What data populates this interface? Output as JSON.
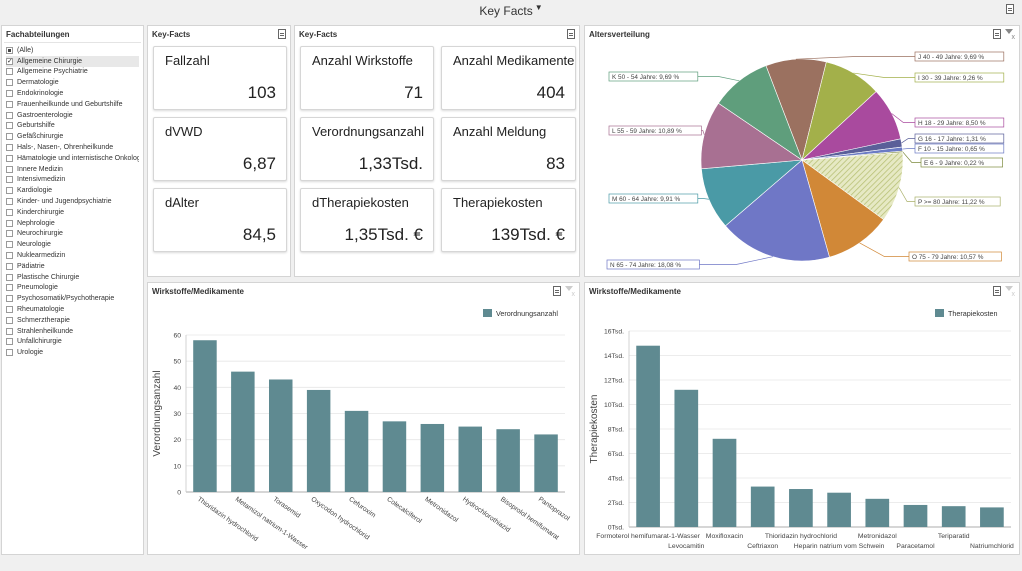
{
  "header": {
    "title": "Key Facts",
    "filter_mark": "▼"
  },
  "filter_panel": {
    "title": "Fachabteilungen",
    "items": [
      {
        "label": "(Alle)",
        "state": "partial"
      },
      {
        "label": "Allgemeine Chirurgie",
        "state": "checked"
      },
      {
        "label": "Allgemeine Psychiatrie",
        "state": "none"
      },
      {
        "label": "Dermatologie",
        "state": "none"
      },
      {
        "label": "Endokrinologie",
        "state": "none"
      },
      {
        "label": "Frauenheilkunde und Geburtshilfe",
        "state": "none"
      },
      {
        "label": "Gastroenterologie",
        "state": "none"
      },
      {
        "label": "Geburtshilfe",
        "state": "none"
      },
      {
        "label": "Gefäßchirurgie",
        "state": "none"
      },
      {
        "label": "Hals-, Nasen-, Ohrenheilkunde",
        "state": "none"
      },
      {
        "label": "Hämatologie und internistische Onkologie",
        "state": "none"
      },
      {
        "label": "Innere Medizin",
        "state": "none"
      },
      {
        "label": "Intensivmedizin",
        "state": "none"
      },
      {
        "label": "Kardiologie",
        "state": "none"
      },
      {
        "label": "Kinder- und Jugendpsychiatrie",
        "state": "none"
      },
      {
        "label": "Kinderchirurgie",
        "state": "none"
      },
      {
        "label": "Nephrologie",
        "state": "none"
      },
      {
        "label": "Neurochirurgie",
        "state": "none"
      },
      {
        "label": "Neurologie",
        "state": "none"
      },
      {
        "label": "Nuklearmedizin",
        "state": "none"
      },
      {
        "label": "Pädiatrie",
        "state": "none"
      },
      {
        "label": "Plastische Chirurgie",
        "state": "none"
      },
      {
        "label": "Pneumologie",
        "state": "none"
      },
      {
        "label": "Psychosomatik/Psychotherapie",
        "state": "none"
      },
      {
        "label": "Rheumatologie",
        "state": "none"
      },
      {
        "label": "Schmerztherapie",
        "state": "none"
      },
      {
        "label": "Strahlenheilkunde",
        "state": "none"
      },
      {
        "label": "Unfallchirurgie",
        "state": "none"
      },
      {
        "label": "Urologie",
        "state": "none"
      }
    ]
  },
  "keyfacts1": {
    "title": "Key-Facts",
    "cards": [
      {
        "label": "Fallzahl",
        "value": "103"
      },
      {
        "label": "dVWD",
        "value": "6,87"
      },
      {
        "label": "dAlter",
        "value": "84,5"
      }
    ]
  },
  "keyfacts2": {
    "title": "Key-Facts",
    "cards": [
      {
        "label": "Anzahl Wirkstoffe",
        "value": "71"
      },
      {
        "label": "Anzahl Medikamente",
        "value": "404"
      },
      {
        "label": "Verordnungsanzahl",
        "value": "1,33Tsd."
      },
      {
        "label": "Anzahl Meldung",
        "value": "83"
      },
      {
        "label": "dTherapiekosten",
        "value": "1,35Tsd. €"
      },
      {
        "label": "Therapiekosten",
        "value": "139Tsd. €"
      }
    ]
  },
  "age_panel": {
    "title": "Altersverteilung"
  },
  "wirkstoffe_panel": {
    "title": "Wirkstoffe/Medikamente"
  },
  "medikamente_panel": {
    "title": "Wirkstoffe/Medikamente"
  },
  "chart_data": [
    {
      "type": "pie",
      "title": "Altersverteilung",
      "slices": [
        {
          "label": "J 40 - 49 Jahre: 9,69 %",
          "value": 9.69,
          "color": "#9b7160"
        },
        {
          "label": "I 30 - 39 Jahre: 9,26 %",
          "value": 9.26,
          "color": "#a3b04a"
        },
        {
          "label": "H 18 - 29 Jahre: 8,50 %",
          "value": 8.5,
          "color": "#a94a9e"
        },
        {
          "label": "G 16 - 17 Jahre: 1,31 %",
          "value": 1.31,
          "color": "#5a5f99"
        },
        {
          "label": "F 10 - 15 Jahre: 0,65 %",
          "value": 0.65,
          "color": "#6b7bc4"
        },
        {
          "label": "E 6 - 9 Jahre: 0,22 %",
          "value": 0.22,
          "color": "#7c8a3c"
        },
        {
          "label": "P >= 80 Jahre: 11,22 %",
          "value": 11.22,
          "color": "#cdd59a"
        },
        {
          "label": "O 75 - 79 Jahre: 10,57 %",
          "value": 10.57,
          "color": "#d18837"
        },
        {
          "label": "N 65 - 74 Jahre: 18,08 %",
          "value": 18.08,
          "color": "#6f77c6"
        },
        {
          "label": "M 60 - 64 Jahre: 9,91 %",
          "value": 9.91,
          "color": "#4a9aa6"
        },
        {
          "label": "L 55 - 59 Jahre: 10,89 %",
          "value": 10.89,
          "color": "#a87092"
        },
        {
          "label": "K 50 - 54 Jahre: 9,69 %",
          "value": 9.69,
          "color": "#5f9e7c"
        }
      ]
    },
    {
      "type": "bar",
      "legend": "Verordnungsanzahl",
      "ylabel": "Verordnungsanzahl",
      "categories": [
        "Thioridazin hydrochlorid",
        "Metamizol natrium-1-Wasser",
        "Torasemid",
        "Oxycodon hydrochlorid",
        "Cefuroxim",
        "Colecalciferol",
        "Metronidazol",
        "Hydrochlorothiazid",
        "Bisoprolol hemifumarat",
        "Pantoprazol"
      ],
      "tick_labels": [
        "Thioridazin hydrochlorid",
        "Metamizol natrium-1-Wasser",
        "Torasemid",
        "Oxycodon hydrochlorid",
        "Cefuroxim",
        "Colecalciferol",
        "Metronidazol",
        "Hydrochlorothiazid",
        "Bisoprolol hemifumarat",
        "Pantoprazol"
      ],
      "values": [
        58,
        46,
        43,
        39,
        31,
        27,
        26,
        25,
        24,
        22
      ],
      "ylim": [
        0,
        60
      ],
      "yticks": [
        0,
        10,
        20,
        30,
        40,
        50,
        60
      ],
      "color": "#5f8a91"
    },
    {
      "type": "bar",
      "legend": "Therapiekosten",
      "ylabel": "Therapiekosten",
      "categories": [
        "Formoterol hemifumarat-1-Wasser",
        "Levocamitin",
        "Moxifloxacin",
        "Ceftriaxon",
        "Thioridazin hydrochlorid",
        "Heparin natrium vom Schwein",
        "Metronidazol",
        "Paracetamol",
        "Teriparatid",
        "Natriumchlorid"
      ],
      "values": [
        14800,
        11200,
        7200,
        3300,
        3100,
        2800,
        2300,
        1800,
        1700,
        1600
      ],
      "ylim": [
        0,
        16000
      ],
      "ytick_labels": [
        "0Tsd.",
        "2Tsd.",
        "4Tsd.",
        "6Tsd.",
        "8Tsd.",
        "10Tsd.",
        "12Tsd.",
        "14Tsd.",
        "16Tsd."
      ],
      "color": "#5f8a91"
    }
  ]
}
